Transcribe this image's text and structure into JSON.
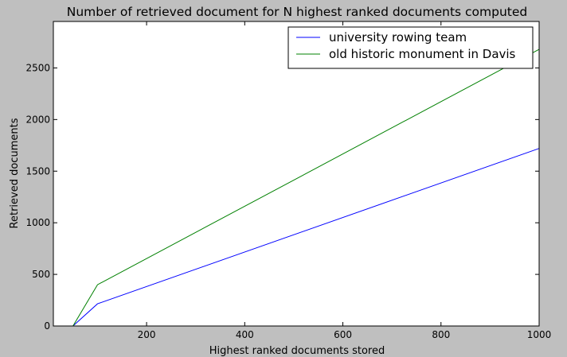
{
  "chart_data": {
    "type": "line",
    "title": "Number of retrieved document for N highest ranked documents computed",
    "xlabel": "Highest ranked documents stored",
    "ylabel": "Retrieved documents",
    "xlim": [
      10,
      1000
    ],
    "ylim": [
      0,
      2950
    ],
    "xticks": [
      200,
      400,
      600,
      800,
      1000
    ],
    "yticks": [
      0,
      500,
      1000,
      1500,
      2000,
      2500
    ],
    "grid": false,
    "legend_position": "top-right",
    "series": [
      {
        "name": "university rowing team",
        "color": "#0000ff",
        "x": [
          10,
          50,
          100,
          1000
        ],
        "y": [
          0,
          0,
          215,
          1720
        ]
      },
      {
        "name": "old historic monument in Davis",
        "color": "#008000",
        "x": [
          10,
          50,
          100,
          1000
        ],
        "y": [
          0,
          0,
          400,
          2680
        ]
      }
    ]
  }
}
